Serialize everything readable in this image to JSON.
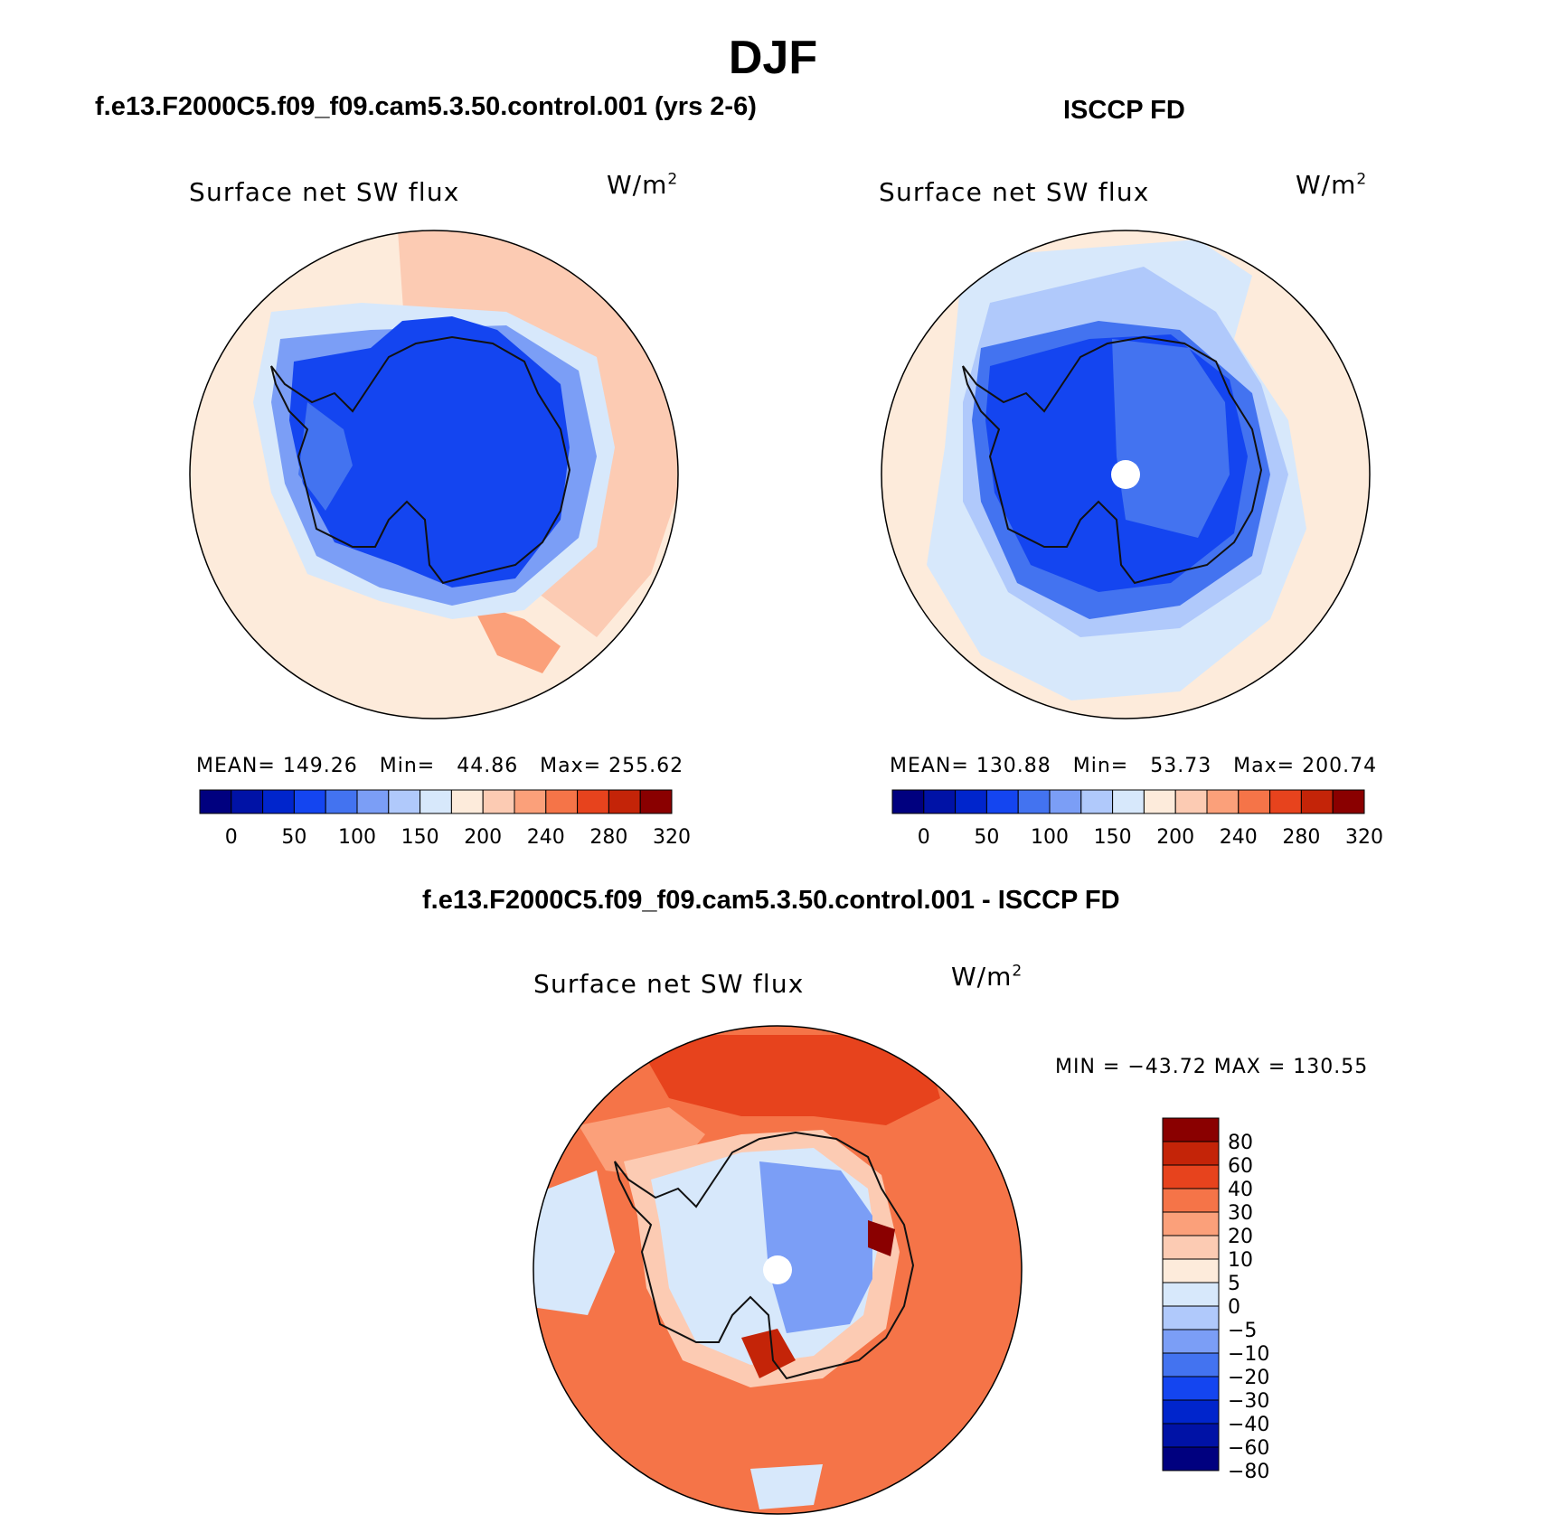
{
  "figure": {
    "season": "DJF",
    "units_base": "W/m",
    "units_exp": "2"
  },
  "panels": {
    "model": {
      "title": "f.e13.F2000C5.f09_f09.cam5.3.50.control.001 (yrs 2-6)",
      "variable": "Surface net SW flux",
      "stats": "MEAN= 149.26   Min=   44.86   Max= 255.62"
    },
    "obs": {
      "title": "ISCCP FD",
      "variable": "Surface net SW flux",
      "stats": "MEAN= 130.88   Min=   53.73   Max= 200.74"
    },
    "diff": {
      "title": "f.e13.F2000C5.f09_f09.cam5.3.50.control.001 - ISCCP FD",
      "variable": "Surface net SW flux",
      "stats": "MIN = −43.72 MAX = 130.55"
    }
  },
  "colorbars": {
    "abs": {
      "colors": [
        "#00007f",
        "#0012a6",
        "#0025cc",
        "#1445f0",
        "#4373f0",
        "#7b9ef6",
        "#b0c9fb",
        "#d7e8fb",
        "#fdebdb",
        "#fccbb3",
        "#fba07a",
        "#f57448",
        "#e7431d",
        "#c42408",
        "#8a0000"
      ],
      "tick_labels": [
        "0",
        "50",
        "100",
        "150",
        "200",
        "240",
        "280",
        "320"
      ]
    },
    "diff": {
      "colors": [
        "#00007f",
        "#0012a6",
        "#0025cc",
        "#1445f0",
        "#4373f0",
        "#7b9ef6",
        "#b0c9fb",
        "#d7e8fb",
        "#fdebdb",
        "#fccbb3",
        "#fba07a",
        "#f57448",
        "#e7431d",
        "#c42408",
        "#8a0000"
      ],
      "tick_labels": [
        "80",
        "60",
        "40",
        "30",
        "20",
        "10",
        "5",
        "0",
        "−5",
        "−10",
        "−20",
        "−30",
        "−40",
        "−60",
        "−80"
      ]
    }
  }
}
